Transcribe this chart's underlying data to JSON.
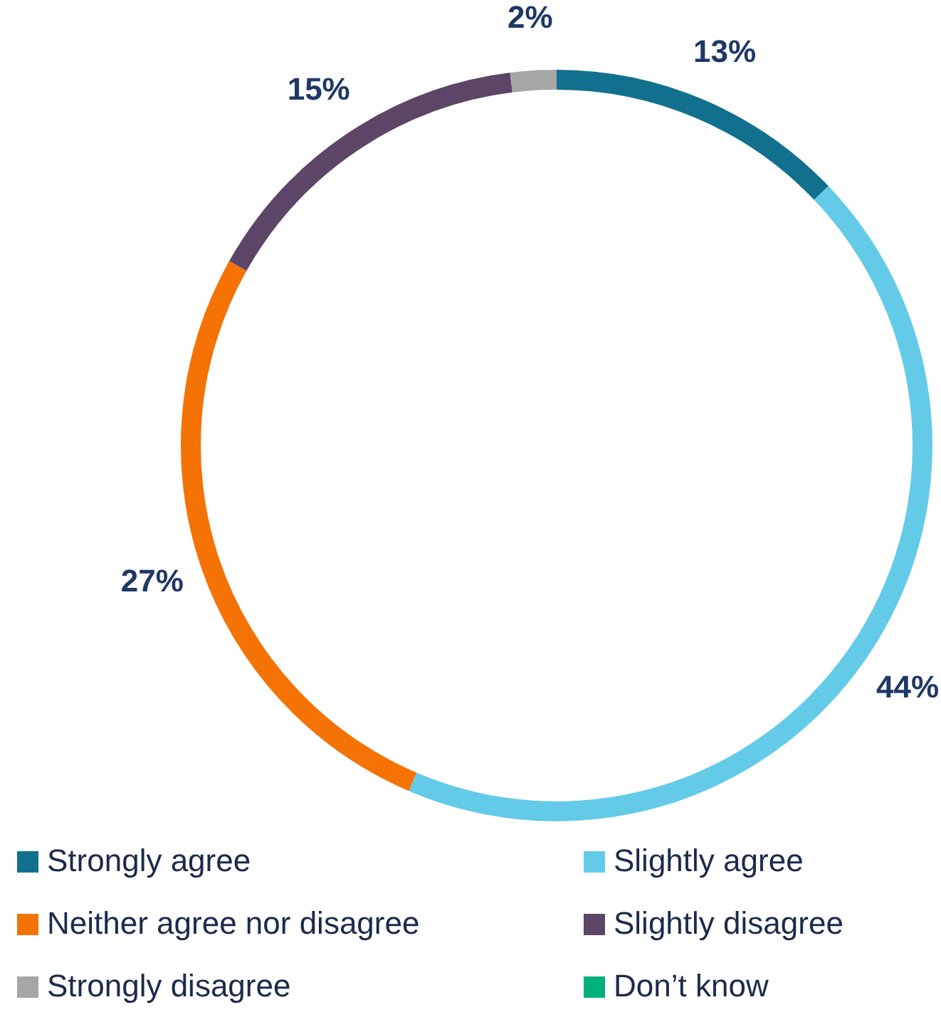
{
  "chart_data": {
    "type": "donut",
    "categories": [
      "Strongly agree",
      "Slightly agree",
      "Neither agree nor disagree",
      "Slightly disagree",
      "Strongly disagree",
      "Don’t know"
    ],
    "values": [
      13,
      44,
      27,
      15,
      2,
      0
    ],
    "colors": [
      "#12708f",
      "#63cbe8",
      "#f57205",
      "#5c4566",
      "#a6a6a6",
      "#00b07a"
    ],
    "value_labels": [
      "13%",
      "44%",
      "27%",
      "15%",
      "2%",
      null
    ],
    "legend": "bottom"
  }
}
